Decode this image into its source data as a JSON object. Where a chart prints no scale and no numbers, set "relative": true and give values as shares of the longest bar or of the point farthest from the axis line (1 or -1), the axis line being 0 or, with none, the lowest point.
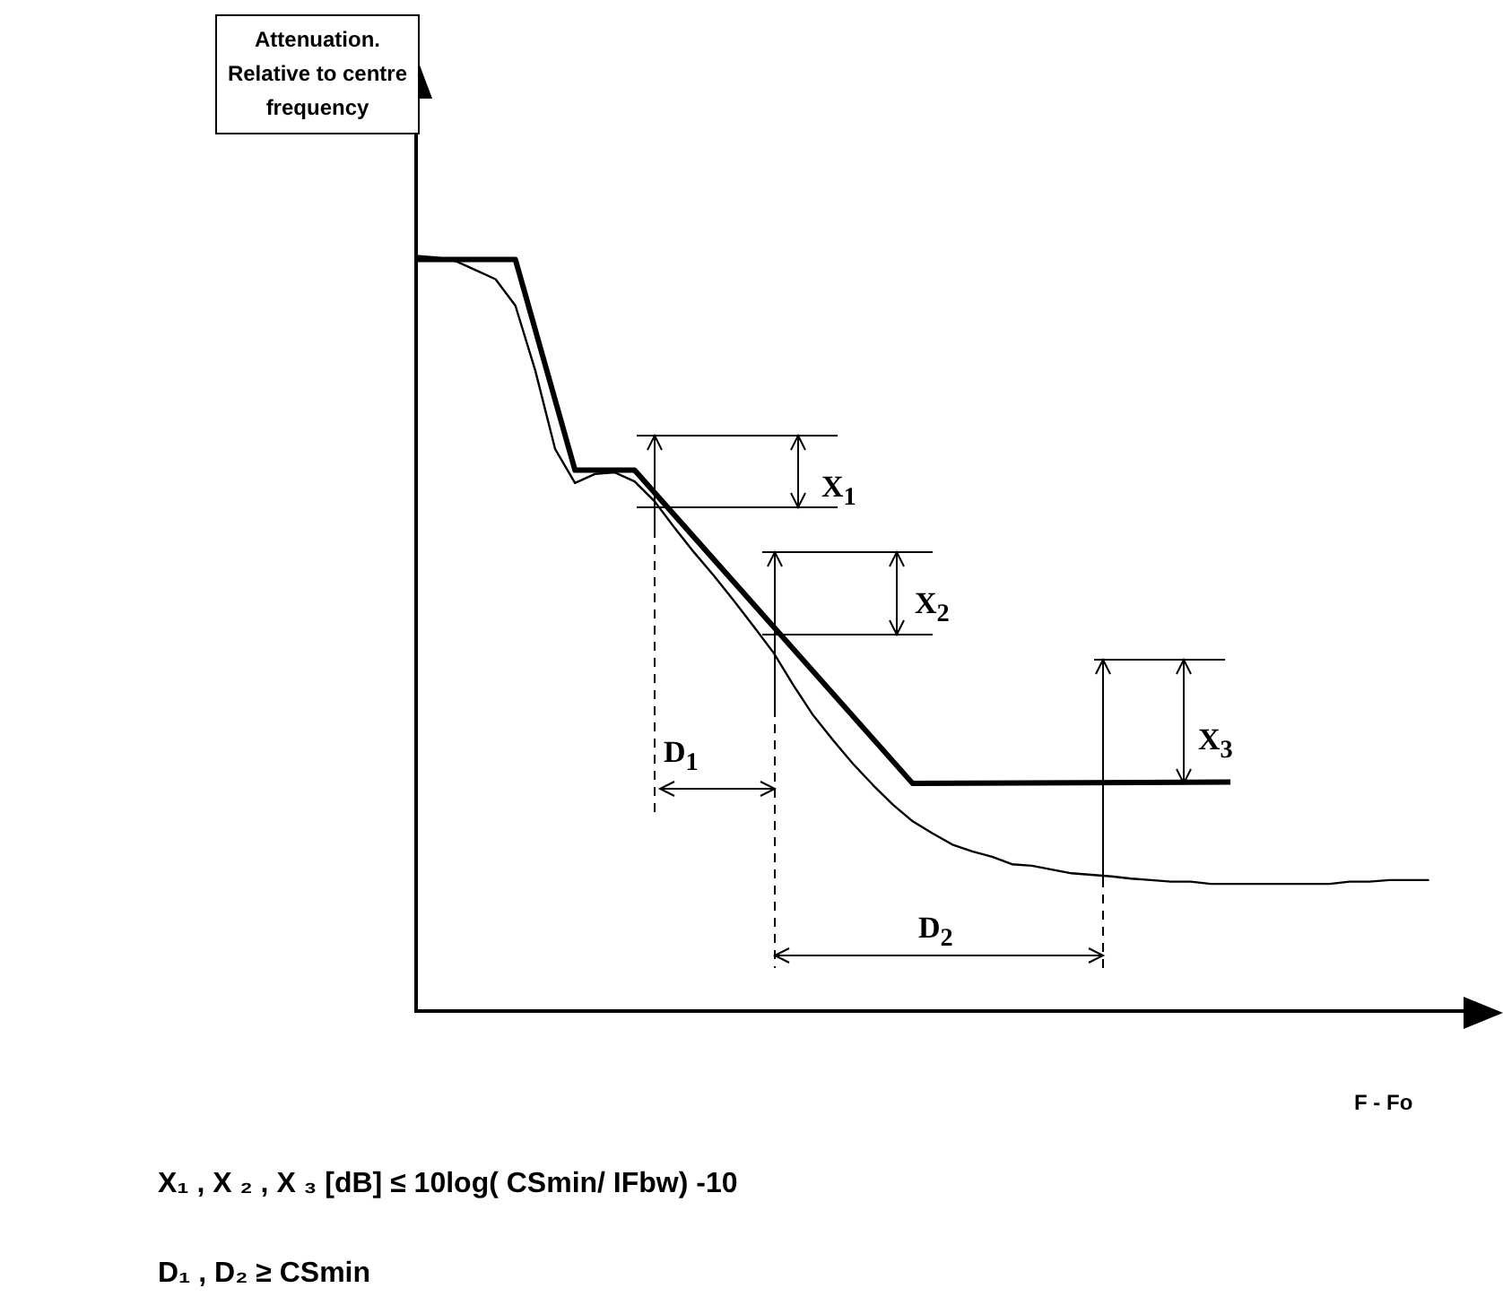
{
  "chart_data": {
    "type": "line",
    "relative": true,
    "xlabel": "F - Fo",
    "grid": false,
    "legend": false,
    "marker": "none",
    "line_style": "solid",
    "categories": [
      null,
      null,
      null,
      null,
      null,
      null,
      null,
      null,
      null,
      null,
      null,
      null,
      null,
      null,
      null,
      null,
      null,
      null,
      null,
      null,
      null,
      null,
      null,
      null,
      null,
      null,
      null,
      null,
      null,
      null,
      null,
      null,
      null,
      null,
      null,
      null,
      null,
      null,
      null,
      null,
      null,
      null,
      null,
      null,
      null,
      null,
      null,
      null,
      null,
      null,
      null,
      null,
      null,
      null,
      null
    ],
    "series": [
      {
        "color": "#000000",
        "values": [
          0.995,
          null,
          null,
          null,
          null,
          0.995,
          null,
          null,
          0.716,
          null,
          null,
          0.716,
          null,
          null,
          null,
          null,
          null,
          null,
          null,
          null,
          null,
          null,
          null,
          null,
          null,
          0.301,
          null,
          null,
          null,
          null,
          null,
          null,
          null,
          null,
          null,
          null,
          null,
          null,
          null,
          null,
          null,
          0.303,
          null,
          null,
          null,
          null,
          null,
          null,
          null,
          null,
          null,
          null,
          null,
          null,
          null
        ]
      },
      {
        "color": "#000000",
        "values": [
          1.0,
          0.998,
          0.993,
          0.981,
          0.969,
          0.934,
          0.848,
          0.744,
          0.699,
          0.711,
          0.713,
          0.701,
          0.675,
          0.64,
          0.607,
          0.576,
          0.543,
          0.509,
          0.474,
          0.431,
          0.391,
          0.358,
          0.327,
          0.299,
          0.273,
          0.251,
          0.235,
          0.22,
          0.211,
          0.204,
          0.194,
          0.192,
          0.187,
          0.182,
          0.18,
          0.178,
          0.175,
          0.173,
          0.171,
          0.171,
          0.168,
          0.168,
          0.168,
          0.168,
          0.168,
          0.168,
          0.168,
          0.171,
          0.171,
          0.173,
          0.173,
          0.173,
          null,
          null,
          null
        ]
      }
    ],
    "annotations": [
      "X$_{1}$",
      "X$_{2}$",
      "X$_{3}$",
      "D$_{1}$",
      "D$_{2}$",
      "Attenuation. Relative to centre frequency",
      "X₁ , X ₂ , X ₃ [dB]  ≤ 10log( CSmin/ IFbw) -10",
      "D₁ , D₂  ≥ CSmin"
    ]
  }
}
